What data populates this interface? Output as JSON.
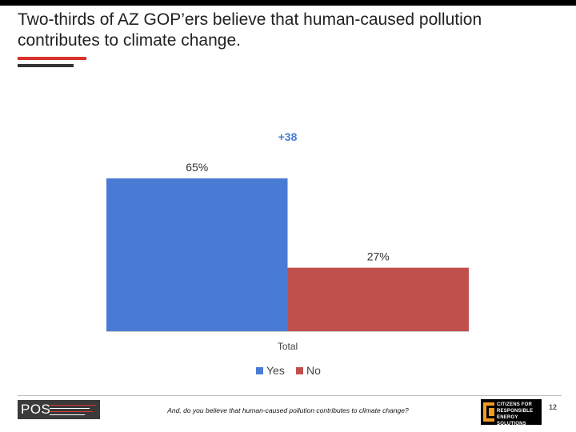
{
  "title": "Two-thirds of AZ GOP’ers believe that human-caused pollution contributes to climate change.",
  "chart_data": {
    "type": "bar",
    "categories": [
      "Total"
    ],
    "series": [
      {
        "name": "Yes",
        "values": [
          65
        ],
        "labels": [
          "65%"
        ],
        "color": "#4a7bd4"
      },
      {
        "name": "No",
        "values": [
          27
        ],
        "labels": [
          "27%"
        ],
        "color": "#c0504d"
      }
    ],
    "ylim": [
      0,
      100
    ],
    "grid": false,
    "legend_position": "bottom",
    "annotation": "+38",
    "annotation_color": "#4a7bd4"
  },
  "footer": {
    "logo_text": "POS",
    "question": "And, do you believe that human-caused pollution contributes to climate change?",
    "cres_text": [
      "CITIZENS FOR",
      "RESPONSIBLE",
      "ENERGY SOLUTIONS"
    ],
    "page_number": "12"
  }
}
